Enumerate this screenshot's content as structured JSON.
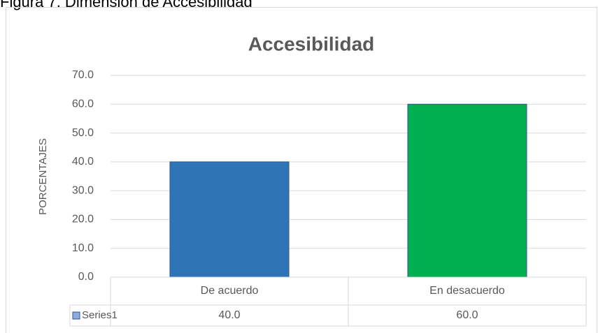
{
  "chart_data": {
    "type": "bar",
    "caption": "Figura 7. Dimensión de Accesibilidad",
    "title": "Accesibilidad",
    "y_label": "PORCENTAJES",
    "categories": [
      "De acuerdo",
      "En desacuerdo"
    ],
    "series": [
      {
        "name": "Series1",
        "values": [
          40,
          60
        ],
        "value_labels": [
          "40.0",
          "60.0"
        ]
      }
    ],
    "colors": [
      "#2e75b6",
      "#00b050"
    ],
    "ylim": [
      0,
      70
    ],
    "yticks": [
      {
        "value": 0,
        "label": "0.0"
      },
      {
        "value": 10,
        "label": "10.0"
      },
      {
        "value": 20,
        "label": "20.0"
      },
      {
        "value": 30,
        "label": "30.0"
      },
      {
        "value": 40,
        "label": "40.0"
      },
      {
        "value": 50,
        "label": "50.0"
      },
      {
        "value": 60,
        "label": "60.0"
      },
      {
        "value": 70,
        "label": "70.0"
      }
    ],
    "grid": true
  }
}
